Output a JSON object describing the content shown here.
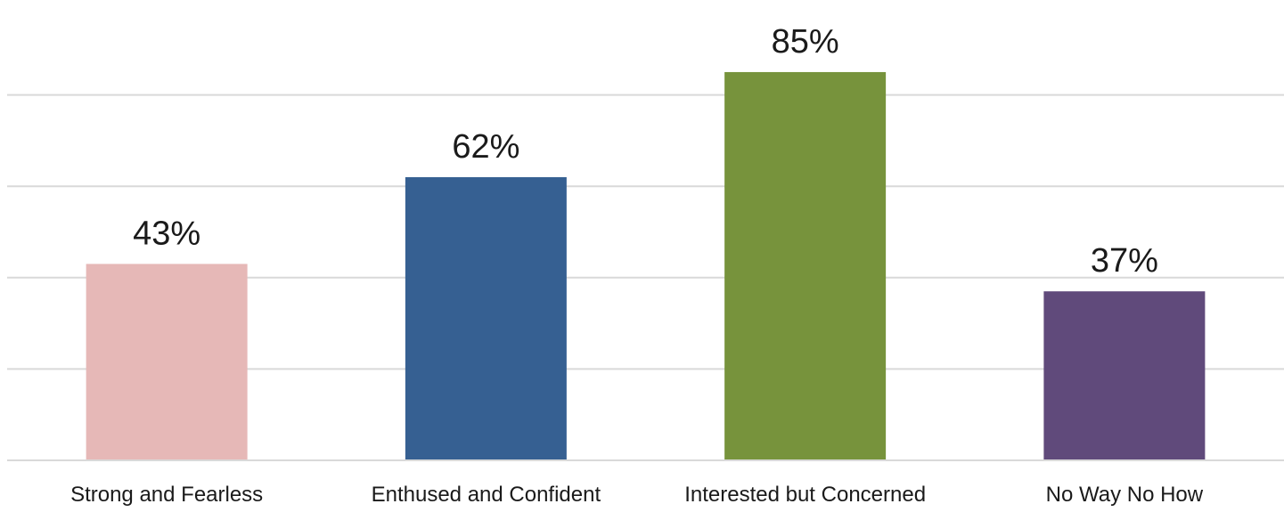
{
  "chart_data": {
    "type": "bar",
    "title": "",
    "xlabel": "",
    "ylabel": "",
    "categories": [
      "Strong and Fearless",
      "Enthused and Confident",
      "Interested but Concerned",
      "No Way No How"
    ],
    "values": [
      43,
      62,
      85,
      37
    ],
    "value_labels": [
      "43%",
      "62%",
      "85%",
      "37%"
    ],
    "unit": "%",
    "colors": [
      "#e6b8b7",
      "#366092",
      "#77933c",
      "#604a7b"
    ],
    "ylim": [
      0,
      100
    ],
    "gridlines": [
      20,
      40,
      60,
      80
    ],
    "grid": true,
    "legend": "none"
  }
}
